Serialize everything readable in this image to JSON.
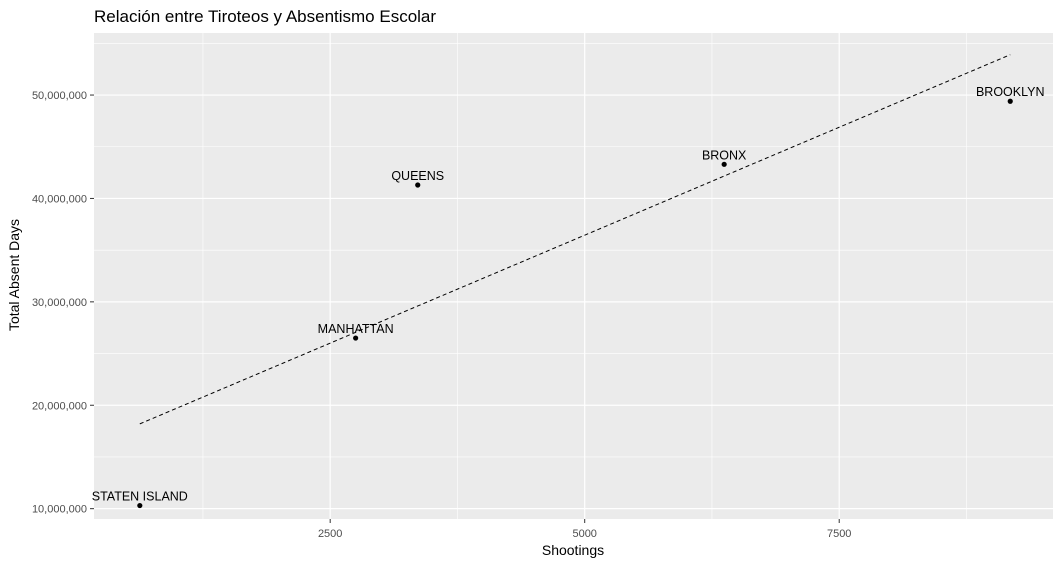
{
  "chart_data": {
    "type": "scatter",
    "title": "Relación entre Tiroteos y Absentismo Escolar",
    "xlabel": "Shootings",
    "ylabel": "Total Absent Days",
    "xlim": [
      180,
      9600
    ],
    "ylim": [
      9000000,
      56000000
    ],
    "x_ticks": [
      2500,
      5000,
      7500
    ],
    "x_tick_labels": [
      "2500",
      "5000",
      "7500"
    ],
    "x_minor_ticks": [
      1250,
      3750,
      6250,
      8750
    ],
    "y_ticks": [
      10000000,
      20000000,
      30000000,
      40000000,
      50000000
    ],
    "y_tick_labels": [
      "10,000,000",
      "20,000,000",
      "30,000,000",
      "40,000,000",
      "50,000,000"
    ],
    "y_minor_ticks": [
      15000000,
      25000000,
      35000000,
      45000000,
      55000000
    ],
    "grid": true,
    "points": [
      {
        "label": "STATEN ISLAND",
        "x": 630,
        "y": 10300000
      },
      {
        "label": "MANHATTAN",
        "x": 2750,
        "y": 26500000
      },
      {
        "label": "QUEENS",
        "x": 3360,
        "y": 41300000
      },
      {
        "label": "BRONX",
        "x": 6370,
        "y": 43300000
      },
      {
        "label": "BROOKLYN",
        "x": 9180,
        "y": 49400000
      }
    ],
    "trend_line": {
      "style": "dashed",
      "x": [
        630,
        9180
      ],
      "y": [
        18200000,
        53900000
      ]
    },
    "colors": {
      "panel": "#ebebeb",
      "grid": "#ffffff",
      "point": "#000000",
      "trend": "#000000"
    }
  }
}
